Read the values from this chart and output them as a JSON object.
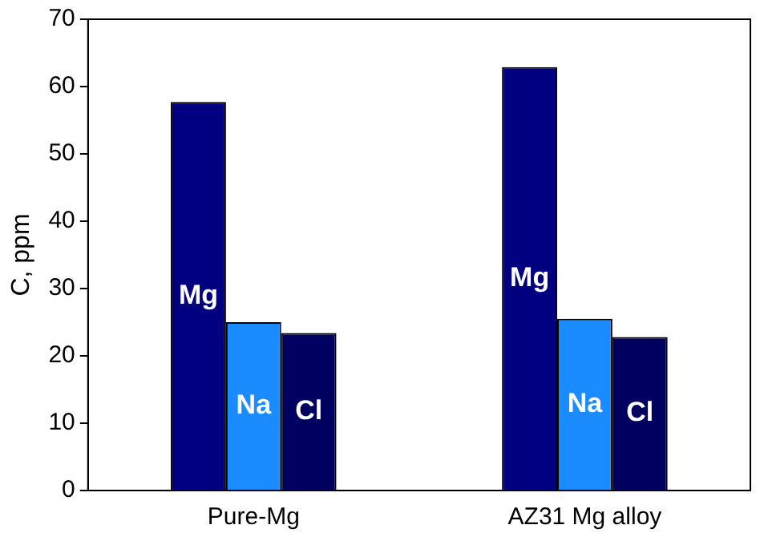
{
  "chart_data": {
    "type": "bar",
    "ylabel": "C, ppm",
    "categories": [
      "Pure-Mg",
      "AZ31 Mg alloy"
    ],
    "series": [
      {
        "name": "Mg",
        "color": "#000080",
        "values": [
          57.7,
          62.9
        ]
      },
      {
        "name": "Na",
        "color": "#1a8cff",
        "values": [
          25.0,
          25.5
        ]
      },
      {
        "name": "Cl",
        "color": "#000060",
        "values": [
          23.4,
          22.8
        ]
      }
    ],
    "ylim": [
      0,
      70
    ],
    "yticks": [
      0,
      10,
      20,
      30,
      40,
      50,
      60,
      70
    ],
    "grid": false,
    "legend": false
  }
}
